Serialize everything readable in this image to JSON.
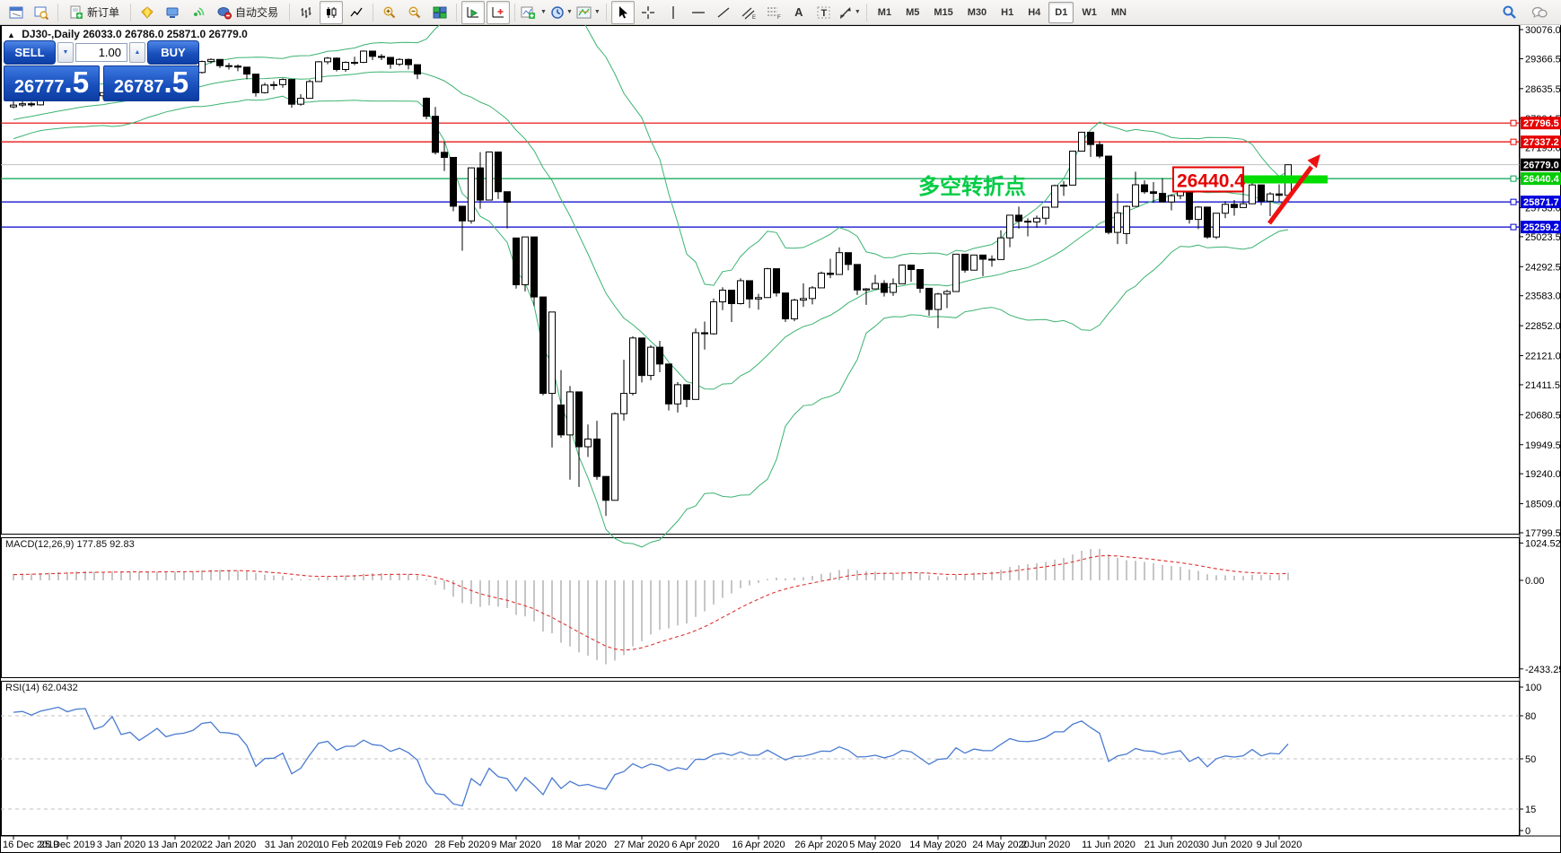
{
  "toolbar": {
    "new_order_label": "新订单",
    "auto_trading_label": "自动交易",
    "timeframes": [
      "M1",
      "M5",
      "M15",
      "M30",
      "H1",
      "H4",
      "D1",
      "W1",
      "MN"
    ],
    "active_timeframe": "D1",
    "text_tool_glyph": "A",
    "label_tool_glyph": "T"
  },
  "trade_panel": {
    "sell_label": "SELL",
    "buy_label": "BUY",
    "volume": "1.00",
    "sell_price_main": "26777",
    "sell_price_frac": ".5",
    "buy_price_main": "26787",
    "buy_price_frac": ".5"
  },
  "chart_header": {
    "collapse_glyph": "▲",
    "symbol_period": "DJ30-,Daily",
    "ohlc_text": "26033.0 26786.0 25871.0 26779.0"
  },
  "macd_panel": {
    "label": "MACD(12,26,9)",
    "values": "177.85 92.83",
    "axis_values": [
      1024.52,
      0.0,
      -2433.25
    ]
  },
  "rsi_panel": {
    "label": "RSI(14)",
    "value": "62.0432",
    "axis_values": [
      100,
      80,
      50,
      15,
      0
    ],
    "level_lines": [
      80,
      50,
      15
    ]
  },
  "annotations": {
    "pivot_label": "多空转折点",
    "pivot_color": "#00cc44",
    "price_callout": "26440.4",
    "callout_color": "#e60000",
    "highlight_bar_color": "#00dd00",
    "arrow_color": "#ee1111"
  },
  "chart_data": {
    "type": "candlestick",
    "symbol": "DJ30",
    "timeframe": "Daily",
    "last_ohlc": {
      "open": 26033.0,
      "high": 26786.0,
      "low": 25871.0,
      "close": 26779.0
    },
    "price_axis_ticks": [
      30076.0,
      29366.5,
      28635.5,
      27904.5,
      27195.0,
      26464.0,
      25733.0,
      25023.5,
      24292.5,
      23583.0,
      22852.0,
      22121.0,
      21411.5,
      20680.5,
      19949.5,
      19240.0,
      18509.0,
      17799.5
    ],
    "horizontal_lines": [
      {
        "price": 27796.5,
        "line_color": "#e60000",
        "label_bg": "#e60000",
        "handle": true
      },
      {
        "price": 27337.2,
        "line_color": "#e60000",
        "label_bg": "#e60000",
        "handle": true
      },
      {
        "price": 26440.4,
        "line_color": "#00a651",
        "label_bg": "#00cc00",
        "handle": true
      },
      {
        "price": 25871.7,
        "line_color": "#0000cc",
        "label_bg": "#0000dd",
        "handle": true
      },
      {
        "price": 25259.2,
        "line_color": "#0000cc",
        "label_bg": "#0000dd",
        "handle": true
      }
    ],
    "current_price_line": {
      "price": 26779.0,
      "line_color": "#c0c0c0",
      "label_bg": "#000000"
    },
    "date_ticks": [
      {
        "index": 0,
        "label": "16 Dec 2019"
      },
      {
        "index": 6,
        "label": "25 Dec 2019"
      },
      {
        "index": 12,
        "label": "3 Jan 2020"
      },
      {
        "index": 18,
        "label": "13 Jan 2020"
      },
      {
        "index": 24,
        "label": "22 Jan 2020"
      },
      {
        "index": 31,
        "label": "31 Jan 2020"
      },
      {
        "index": 37,
        "label": "10 Feb 2020"
      },
      {
        "index": 43,
        "label": "19 Feb 2020"
      },
      {
        "index": 50,
        "label": "28 Feb 2020"
      },
      {
        "index": 56,
        "label": "9 Mar 2020"
      },
      {
        "index": 63,
        "label": "18 Mar 2020"
      },
      {
        "index": 70,
        "label": "27 Mar 2020"
      },
      {
        "index": 76,
        "label": "6 Apr 2020"
      },
      {
        "index": 83,
        "label": "16 Apr 2020"
      },
      {
        "index": 90,
        "label": "26 Apr 2020"
      },
      {
        "index": 96,
        "label": "5 May 2020"
      },
      {
        "index": 103,
        "label": "14 May 2020"
      },
      {
        "index": 110,
        "label": "24 May 2020"
      },
      {
        "index": 115,
        "label": "2 Jun 2020"
      },
      {
        "index": 122,
        "label": "11 Jun 2020"
      },
      {
        "index": 129,
        "label": "21 Jun 2020"
      },
      {
        "index": 135,
        "label": "30 Jun 2020"
      },
      {
        "index": 141,
        "label": "9 Jul 2020"
      }
    ],
    "indicators": {
      "bollinger": {
        "period": 20,
        "deviation": 2,
        "color": "#3cb371"
      },
      "macd": {
        "fast": 12,
        "slow": 26,
        "signal": 9,
        "current_main": 177.85,
        "current_signal": 92.83,
        "histogram_color": "#c6c6c6",
        "signal_color": "#e03030"
      },
      "rsi": {
        "period": 14,
        "current": 62.0432,
        "color": "#4a7bd0",
        "level_color": "#bfbfbf"
      }
    },
    "prehistory_closes": [
      27347,
      27403,
      27460,
      27521,
      27649,
      27675,
      27783,
      27821,
      27911,
      28005,
      28066,
      28121,
      28051,
      27909,
      27881,
      27849,
      27911,
      28015,
      28132,
      28175
    ],
    "candles": [
      [
        28191,
        28337,
        28156,
        28235
      ],
      [
        28236,
        28328,
        28185,
        28267
      ],
      [
        28267,
        28312,
        28190,
        28239
      ],
      [
        28240,
        28414,
        28224,
        28377
      ],
      [
        28377,
        28497,
        28341,
        28455
      ],
      [
        28455,
        28592,
        28430,
        28551
      ],
      [
        28551,
        28580,
        28466,
        28515
      ],
      [
        28516,
        28660,
        28500,
        28621
      ],
      [
        28621,
        28701,
        28580,
        28645
      ],
      [
        28645,
        28664,
        28418,
        28462
      ],
      [
        28462,
        28547,
        28376,
        28538
      ],
      [
        28539,
        28890,
        28520,
        28868
      ],
      [
        28868,
        28872,
        28565,
        28635
      ],
      [
        28636,
        28748,
        28524,
        28703
      ],
      [
        28703,
        28716,
        28522,
        28583
      ],
      [
        28584,
        28760,
        28556,
        28745
      ],
      [
        28745,
        28988,
        28720,
        28957
      ],
      [
        28957,
        28965,
        28760,
        28824
      ],
      [
        28824,
        28918,
        28771,
        28907
      ],
      [
        28907,
        28961,
        28830,
        28939
      ],
      [
        28940,
        29054,
        28910,
        29030
      ],
      [
        29030,
        29320,
        29005,
        29297
      ],
      [
        29297,
        29373,
        29250,
        29348
      ],
      [
        29348,
        29350,
        29137,
        29196
      ],
      [
        29196,
        29264,
        29102,
        29186
      ],
      [
        29186,
        29229,
        29062,
        29160
      ],
      [
        29160,
        29170,
        28864,
        28990
      ],
      [
        28990,
        28996,
        28440,
        28536
      ],
      [
        28537,
        28778,
        28516,
        28723
      ],
      [
        28723,
        28814,
        28608,
        28734
      ],
      [
        28734,
        28890,
        28660,
        28859
      ],
      [
        28859,
        28862,
        28169,
        28256
      ],
      [
        28256,
        28501,
        28220,
        28400
      ],
      [
        28400,
        28854,
        28390,
        28808
      ],
      [
        28808,
        29308,
        28800,
        29291
      ],
      [
        29291,
        29409,
        29230,
        29380
      ],
      [
        29380,
        29394,
        29056,
        29103
      ],
      [
        29103,
        29298,
        29048,
        29277
      ],
      [
        29277,
        29415,
        29210,
        29276
      ],
      [
        29276,
        29568,
        29260,
        29551
      ],
      [
        29551,
        29560,
        29331,
        29423
      ],
      [
        29423,
        29481,
        29333,
        29398
      ],
      [
        29398,
        29400,
        29120,
        29232
      ],
      [
        29232,
        29378,
        29190,
        29348
      ],
      [
        29348,
        29369,
        29104,
        29220
      ],
      [
        29220,
        29222,
        28866,
        28992
      ],
      [
        28402,
        28420,
        27888,
        27961
      ],
      [
        27961,
        28188,
        27030,
        27081
      ],
      [
        27082,
        27347,
        26626,
        26958
      ],
      [
        26958,
        26960,
        25646,
        25767
      ],
      [
        25767,
        25770,
        24681,
        25409
      ],
      [
        25409,
        26708,
        25340,
        26703
      ],
      [
        26703,
        27085,
        25706,
        25917
      ],
      [
        25918,
        27102,
        25910,
        27091
      ],
      [
        27090,
        27093,
        25943,
        26121
      ],
      [
        26121,
        26122,
        25227,
        25865
      ],
      [
        24992,
        25003,
        23756,
        23851
      ],
      [
        23851,
        25020,
        23690,
        25018
      ],
      [
        25018,
        25021,
        23328,
        23553
      ],
      [
        23553,
        23555,
        21154,
        21200
      ],
      [
        21201,
        23189,
        19882,
        23186
      ],
      [
        20917,
        21768,
        20116,
        20188
      ],
      [
        20188,
        21379,
        19096,
        21237
      ],
      [
        21237,
        21240,
        18917,
        19899
      ],
      [
        19899,
        20442,
        19649,
        20087
      ],
      [
        20087,
        20531,
        19094,
        19174
      ],
      [
        19174,
        19180,
        18213,
        18592
      ],
      [
        18592,
        20737,
        18592,
        20705
      ],
      [
        20705,
        22019,
        20538,
        21200
      ],
      [
        21201,
        22595,
        21150,
        22552
      ],
      [
        22552,
        22552,
        21469,
        21637
      ],
      [
        21638,
        22378,
        21522,
        22327
      ],
      [
        22327,
        22482,
        21717,
        21917
      ],
      [
        21917,
        21917,
        20784,
        20944
      ],
      [
        20944,
        21477,
        20735,
        21413
      ],
      [
        21413,
        21414,
        20863,
        21053
      ],
      [
        21053,
        22783,
        21052,
        22680
      ],
      [
        22680,
        22952,
        22269,
        22654
      ],
      [
        22654,
        23513,
        22634,
        23434
      ],
      [
        23434,
        23791,
        23232,
        23719
      ],
      [
        23719,
        23723,
        22942,
        23391
      ],
      [
        23391,
        24009,
        23368,
        23950
      ],
      [
        23950,
        23951,
        23282,
        23504
      ],
      [
        23504,
        23629,
        23243,
        23538
      ],
      [
        23538,
        24264,
        23538,
        24242
      ],
      [
        24242,
        24244,
        23563,
        23650
      ],
      [
        23650,
        23652,
        22941,
        23019
      ],
      [
        23019,
        23514,
        22960,
        23476
      ],
      [
        23476,
        23885,
        23310,
        23515
      ],
      [
        23515,
        23818,
        23371,
        23775
      ],
      [
        23775,
        24174,
        23775,
        24134
      ],
      [
        24134,
        24484,
        24012,
        24102
      ],
      [
        24102,
        24765,
        24102,
        24634
      ],
      [
        24634,
        24635,
        24202,
        24346
      ],
      [
        24346,
        24349,
        23602,
        23724
      ],
      [
        23724,
        23770,
        23361,
        23750
      ],
      [
        23750,
        24094,
        23750,
        23883
      ],
      [
        23883,
        23962,
        23562,
        23665
      ],
      [
        23665,
        24006,
        23580,
        23876
      ],
      [
        23876,
        24349,
        23876,
        24331
      ],
      [
        24331,
        24332,
        23925,
        24222
      ],
      [
        24222,
        24223,
        23652,
        23765
      ],
      [
        23765,
        23766,
        23096,
        23248
      ],
      [
        23248,
        23653,
        22790,
        23625
      ],
      [
        23625,
        23727,
        23280,
        23685
      ],
      [
        23685,
        24602,
        23685,
        24597
      ],
      [
        24597,
        24600,
        24146,
        24207
      ],
      [
        24207,
        24585,
        24207,
        24576
      ],
      [
        24576,
        24577,
        24060,
        24474
      ],
      [
        24474,
        24567,
        24294,
        24465
      ],
      [
        24466,
        25180,
        24466,
        24995
      ],
      [
        24995,
        25549,
        24766,
        25548
      ],
      [
        25548,
        25758,
        25222,
        25401
      ],
      [
        25401,
        25471,
        25032,
        25383
      ],
      [
        25383,
        25539,
        25243,
        25475
      ],
      [
        25475,
        25747,
        25316,
        25743
      ],
      [
        25743,
        26294,
        25743,
        26270
      ],
      [
        26270,
        26384,
        26019,
        26282
      ],
      [
        26282,
        27122,
        26282,
        27111
      ],
      [
        27111,
        27580,
        27111,
        27572
      ],
      [
        27572,
        27577,
        26968,
        27272
      ],
      [
        27272,
        27355,
        26938,
        26990
      ],
      [
        26990,
        26990,
        25082,
        25128
      ],
      [
        25128,
        26077,
        24843,
        25605
      ],
      [
        25100,
        25790,
        24843,
        25763
      ],
      [
        25763,
        26611,
        25763,
        26290
      ],
      [
        26290,
        26400,
        26068,
        26120
      ],
      [
        26120,
        26355,
        25848,
        26080
      ],
      [
        26080,
        26451,
        25861,
        25871
      ],
      [
        25871,
        26059,
        25667,
        26025
      ],
      [
        26025,
        26297,
        25936,
        26156
      ],
      [
        26156,
        26157,
        25345,
        25445
      ],
      [
        25445,
        25771,
        25210,
        25746
      ],
      [
        25746,
        25747,
        24971,
        25016
      ],
      [
        25016,
        25601,
        24966,
        25596
      ],
      [
        25596,
        25890,
        25476,
        25813
      ],
      [
        25813,
        25917,
        25536,
        25735
      ],
      [
        25735,
        26204,
        25735,
        25827
      ],
      [
        25827,
        26466,
        25827,
        26287
      ],
      [
        26287,
        26290,
        25793,
        25890
      ],
      [
        25890,
        26109,
        25523,
        26067
      ],
      [
        26067,
        26300,
        25880,
        26033
      ],
      [
        26033,
        26786,
        25871,
        26779
      ]
    ]
  }
}
